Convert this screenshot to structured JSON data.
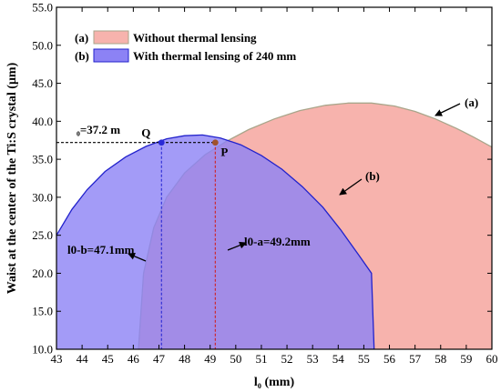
{
  "chart_data": {
    "type": "area",
    "xlabel": "l₀ (mm)",
    "ylabel": "Waist at the center of the Ti:S crystal (μm)",
    "xlim": [
      43,
      60
    ],
    "ylim": [
      10,
      55
    ],
    "x_ticks": [
      43,
      44,
      45,
      46,
      47,
      48,
      49,
      50,
      51,
      52,
      53,
      54,
      55,
      56,
      57,
      58,
      59,
      60
    ],
    "y_ticks": [
      10,
      15,
      20,
      25,
      30,
      35,
      40,
      45,
      50,
      55
    ],
    "y_tick_format": "0.0",
    "grid": false,
    "legend_position": "top-left",
    "series": [
      {
        "name": "Without thermal lensing",
        "marker": "(a)",
        "fill_color": "#f7b3ad",
        "edge_color": "#a9a58a",
        "x": [
          46.2,
          46.4,
          46.8,
          47.3,
          48.0,
          48.8,
          49.6,
          50.5,
          51.5,
          52.5,
          53.5,
          54.4,
          55.3,
          56.2,
          57.0,
          57.8,
          58.6,
          59.3,
          60.0
        ],
        "y": [
          10.0,
          20.0,
          26.0,
          30.0,
          33.2,
          35.6,
          37.3,
          38.9,
          40.3,
          41.4,
          42.1,
          42.4,
          42.4,
          42.0,
          41.3,
          40.3,
          39.1,
          37.9,
          36.6
        ]
      },
      {
        "name": "With thermal lensing of 240 mm",
        "marker": "(b)",
        "fill_color": "#8c82f5",
        "edge_color": "#2222cc",
        "x": [
          43.0,
          43.6,
          44.2,
          44.9,
          45.7,
          46.5,
          47.3,
          48.0,
          48.7,
          49.4,
          50.2,
          51.0,
          51.8,
          52.6,
          53.4,
          54.1,
          54.8,
          55.3,
          55.4
        ],
        "y": [
          25.0,
          28.4,
          31.0,
          33.4,
          35.3,
          36.7,
          37.7,
          38.1,
          38.2,
          37.8,
          36.9,
          35.5,
          33.7,
          31.4,
          28.7,
          25.7,
          22.4,
          20.0,
          10.0
        ]
      }
    ],
    "points": [
      {
        "label": "Q",
        "x": 47.1,
        "y": 37.2,
        "color": "#2a2ad6"
      },
      {
        "label": "P",
        "x": 49.2,
        "y": 37.2,
        "color": "#a0522d"
      }
    ],
    "annotations": {
      "waist_label": "₀=37.2   m",
      "l0b_label": "l0-b=47.1mm",
      "l0a_label": "l0-a=49.2mm",
      "curve_a_label": "(a)",
      "curve_b_label": "(b)"
    },
    "legend": {
      "a_marker": "(a)",
      "a_text": "Without thermal lensing",
      "b_marker": "(b)",
      "b_text": "With thermal lensing of 240 mm"
    }
  }
}
